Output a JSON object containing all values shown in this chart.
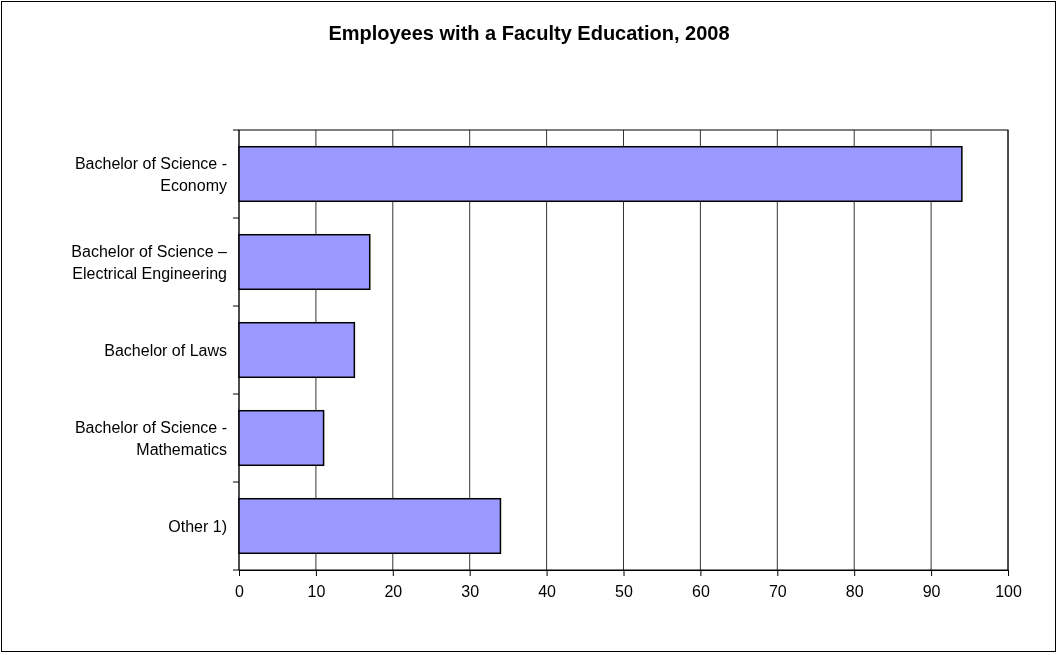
{
  "chart_data": {
    "type": "bar",
    "orientation": "horizontal",
    "title": "Employees with a Faculty Education, 2008",
    "categories": [
      "Bachelor of Science - Economy",
      "Bachelor of Science – Electrical Engineering",
      "Bachelor of Laws",
      "Bachelor of Science - Mathematics",
      "Other 1)"
    ],
    "values": [
      94,
      17,
      15,
      11,
      34
    ],
    "color": "#9999ff",
    "xlim": [
      0,
      100
    ],
    "xticks": [
      0,
      10,
      20,
      30,
      40,
      50,
      60,
      70,
      80,
      90,
      100
    ],
    "grid": "x"
  }
}
